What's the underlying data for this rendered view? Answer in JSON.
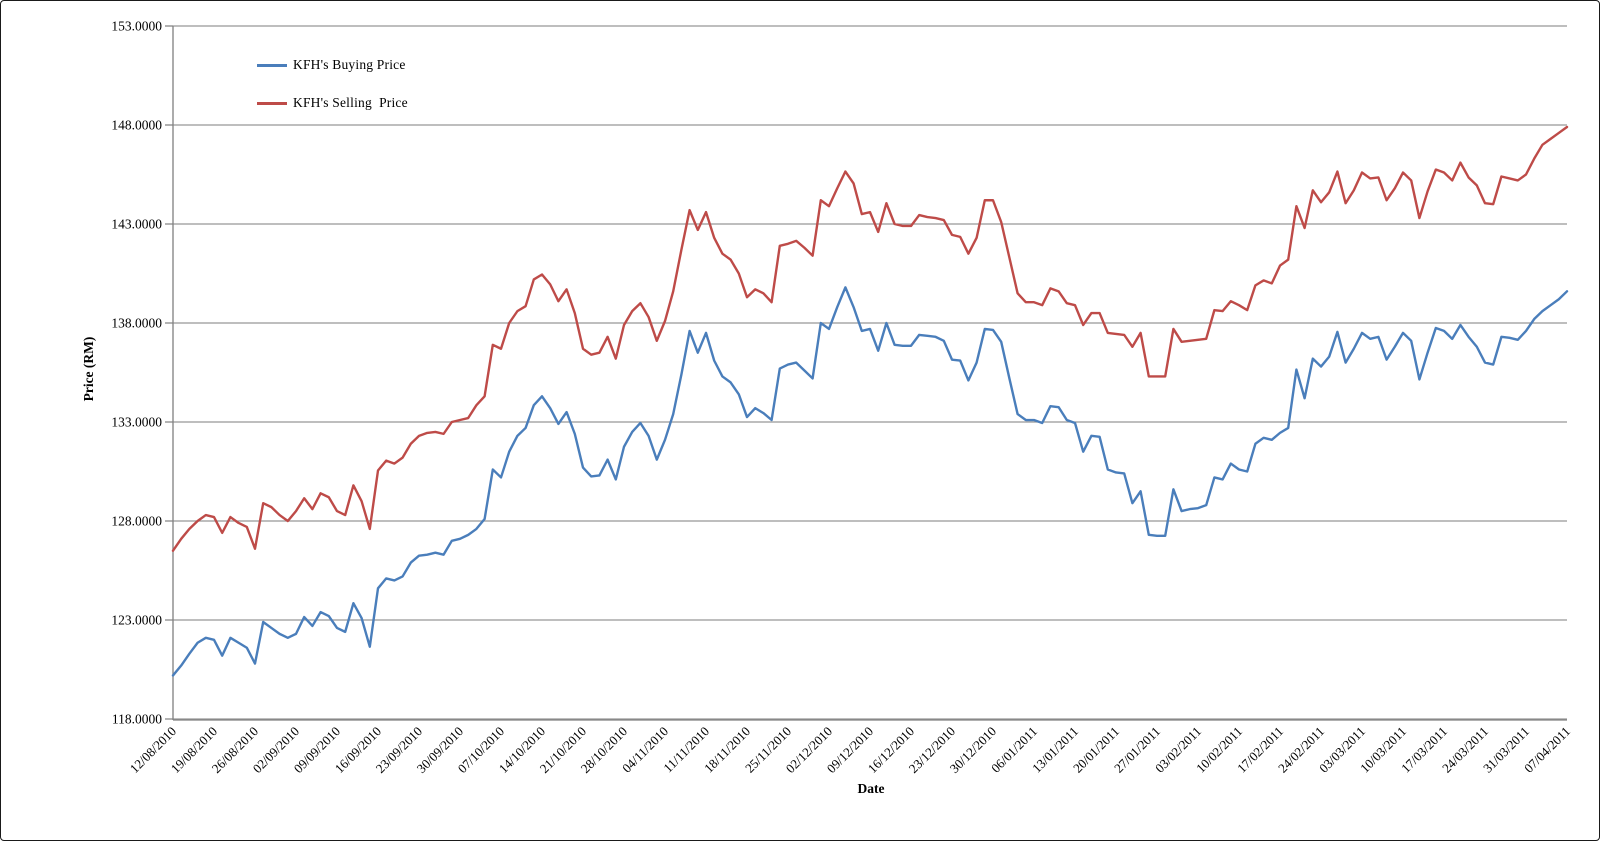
{
  "chart_data": {
    "type": "line",
    "title": "",
    "xlabel": "Date",
    "ylabel": "Price (RM)",
    "ylim": [
      118,
      153
    ],
    "y_step": 5,
    "y_tick_labels": [
      "118.0000",
      "123.0000",
      "128.0000",
      "133.0000",
      "138.0000",
      "143.0000",
      "148.0000",
      "153.0000"
    ],
    "grid": "horizontal",
    "legend_position": "top-left-inside",
    "x_tick_labels": [
      "12/08/2010",
      "19/08/2010",
      "26/08/2010",
      "02/09/2010",
      "09/09/2010",
      "16/09/2010",
      "23/09/2010",
      "30/09/2010",
      "07/10/2010",
      "14/10/2010",
      "21/10/2010",
      "28/10/2010",
      "04/11/2010",
      "11/11/2010",
      "18/11/2010",
      "25/11/2010",
      "02/12/2010",
      "09/12/2010",
      "16/12/2010",
      "23/12/2010",
      "30/12/2010",
      "06/01/2011",
      "13/01/2011",
      "20/01/2011",
      "27/01/2011",
      "03/02/2011",
      "10/02/2011",
      "17/02/2011",
      "24/02/2011",
      "03/03/2011",
      "10/03/2011",
      "17/03/2011",
      "24/03/2011",
      "31/03/2011",
      "07/04/2011"
    ],
    "points_per_tick": 5,
    "series": [
      {
        "name": "KFH's Buying Price",
        "color": "#4A7EBB",
        "values": [
          120.2,
          120.7,
          121.3,
          121.85,
          122.1,
          122.0,
          121.2,
          122.1,
          121.85,
          121.6,
          120.8,
          122.9,
          122.6,
          122.3,
          122.1,
          122.3,
          123.15,
          122.7,
          123.4,
          123.2,
          122.6,
          122.4,
          123.85,
          123.1,
          121.65,
          124.6,
          125.1,
          125.0,
          125.2,
          125.9,
          126.25,
          126.3,
          126.4,
          126.3,
          127.0,
          127.1,
          127.3,
          127.6,
          128.1,
          130.6,
          130.2,
          131.5,
          132.3,
          132.7,
          133.85,
          134.3,
          133.7,
          132.9,
          133.5,
          132.4,
          130.7,
          130.25,
          130.3,
          131.1,
          130.1,
          131.75,
          132.5,
          132.95,
          132.3,
          131.1,
          132.1,
          133.4,
          135.4,
          137.6,
          136.5,
          137.5,
          136.1,
          135.3,
          135.0,
          134.4,
          133.25,
          133.7,
          133.45,
          133.1,
          135.7,
          135.9,
          136.0,
          135.6,
          135.2,
          138.0,
          137.7,
          138.8,
          139.8,
          138.8,
          137.6,
          137.7,
          136.6,
          138.0,
          136.9,
          136.85,
          136.85,
          137.4,
          137.35,
          137.3,
          137.1,
          136.15,
          136.1,
          135.1,
          136.0,
          137.7,
          137.65,
          137.05,
          135.2,
          133.4,
          133.1,
          133.1,
          132.95,
          133.8,
          133.75,
          133.1,
          132.95,
          131.5,
          132.3,
          132.25,
          130.6,
          130.45,
          130.4,
          128.9,
          129.5,
          127.3,
          127.25,
          127.25,
          129.6,
          128.5,
          128.6,
          128.65,
          128.8,
          130.2,
          130.1,
          130.9,
          130.6,
          130.5,
          131.9,
          132.2,
          132.1,
          132.45,
          132.7,
          135.65,
          134.2,
          136.2,
          135.8,
          136.3,
          137.55,
          136.0,
          136.7,
          137.5,
          137.2,
          137.3,
          136.15,
          136.8,
          137.5,
          137.1,
          135.15,
          136.5,
          137.75,
          137.6,
          137.2,
          137.9,
          137.3,
          136.8,
          136.0,
          135.9,
          137.3,
          137.25,
          137.15,
          137.6,
          138.2,
          138.6,
          138.9,
          139.2,
          139.6
        ]
      },
      {
        "name": "KFH's Selling  Price",
        "color": "#BE4B48",
        "values": [
          126.5,
          127.1,
          127.6,
          128.0,
          128.3,
          128.2,
          127.4,
          128.2,
          127.9,
          127.7,
          126.6,
          128.9,
          128.7,
          128.3,
          128.0,
          128.5,
          129.15,
          128.6,
          129.4,
          129.2,
          128.5,
          128.3,
          129.8,
          129.0,
          127.6,
          130.55,
          131.05,
          130.9,
          131.2,
          131.9,
          132.3,
          132.45,
          132.5,
          132.4,
          133.0,
          133.1,
          133.2,
          133.85,
          134.3,
          136.9,
          136.7,
          138.0,
          138.6,
          138.85,
          140.2,
          140.45,
          139.95,
          139.1,
          139.7,
          138.5,
          136.7,
          136.4,
          136.5,
          137.3,
          136.2,
          137.9,
          138.6,
          139.0,
          138.3,
          137.1,
          138.1,
          139.6,
          141.7,
          143.7,
          142.7,
          143.6,
          142.3,
          141.5,
          141.2,
          140.5,
          139.3,
          139.7,
          139.5,
          139.05,
          141.9,
          142.0,
          142.15,
          141.8,
          141.4,
          144.2,
          143.9,
          144.8,
          145.65,
          145.05,
          143.5,
          143.6,
          142.6,
          144.05,
          143.0,
          142.9,
          142.9,
          143.45,
          143.35,
          143.3,
          143.2,
          142.45,
          142.35,
          141.5,
          142.3,
          144.2,
          144.2,
          143.1,
          141.3,
          139.5,
          139.05,
          139.05,
          138.9,
          139.75,
          139.6,
          139.0,
          138.9,
          137.9,
          138.5,
          138.5,
          137.5,
          137.45,
          137.4,
          136.8,
          137.5,
          135.3,
          135.3,
          135.3,
          137.7,
          137.05,
          137.1,
          137.15,
          137.2,
          138.65,
          138.6,
          139.1,
          138.9,
          138.65,
          139.9,
          140.15,
          140.0,
          140.9,
          141.2,
          143.9,
          142.8,
          144.7,
          144.1,
          144.6,
          145.65,
          144.05,
          144.7,
          145.6,
          145.3,
          145.35,
          144.2,
          144.8,
          145.6,
          145.2,
          143.3,
          144.65,
          145.75,
          145.6,
          145.2,
          146.1,
          145.35,
          144.95,
          144.05,
          144.0,
          145.4,
          145.3,
          145.2,
          145.5,
          146.3,
          147.0,
          147.3,
          147.6,
          147.9
        ]
      }
    ]
  },
  "style_colors": {
    "gridline": "#969696",
    "axis": "#808080",
    "text": "#000000"
  }
}
